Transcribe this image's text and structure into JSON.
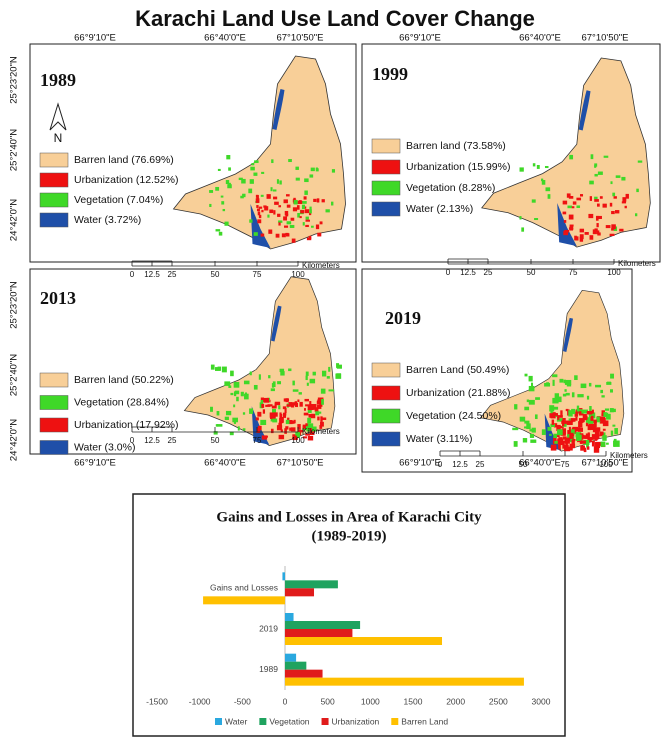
{
  "title": "Karachi Land Use Land Cover Change",
  "lon_labels": [
    "66°9'10\"E",
    "66°40'0\"E",
    "67°10'50\"E"
  ],
  "lat_labels": [
    "25°23'20\"N",
    "25°2'40\"N",
    "24°42'0\"N"
  ],
  "maps": [
    {
      "year": "1989",
      "north": "N",
      "legend": [
        {
          "label": "Barren land (76.69%)",
          "color": "#f8cf98"
        },
        {
          "label": "Urbanization (12.52%)",
          "color": "#ee1111"
        },
        {
          "label": "Vegetation (7.04%)",
          "color": "#3fd828"
        },
        {
          "label": "Water (3.72%)",
          "color": "#1f4fa8"
        }
      ],
      "scale": [
        "0",
        "12.5",
        "25",
        "50",
        "75",
        "100"
      ],
      "unit": "Kilometers"
    },
    {
      "year": "1999",
      "legend": [
        {
          "label": "Barren land (73.58%)",
          "color": "#f8cf98"
        },
        {
          "label": "Urbanization (15.99%)",
          "color": "#ee1111"
        },
        {
          "label": "Vegetation (8.28%)",
          "color": "#3fd828"
        },
        {
          "label": "Water (2.13%)",
          "color": "#1f4fa8"
        }
      ],
      "scale": [
        "0",
        "12.5",
        "25",
        "50",
        "75",
        "100"
      ],
      "unit": "Kilometers"
    },
    {
      "year": "2013",
      "legend": [
        {
          "label": "Barren land (50.22%)",
          "color": "#f8cf98"
        },
        {
          "label": "Vegetation (28.84%)",
          "color": "#3fd828"
        },
        {
          "label": "Urbanization (17.92%)",
          "color": "#ee1111"
        },
        {
          "label": "Water (3.0%)",
          "color": "#1f4fa8"
        }
      ],
      "scale": [
        "0",
        "12.5",
        "25",
        "50",
        "75",
        "100"
      ],
      "unit": "Kilometers"
    },
    {
      "year": "2019",
      "legend": [
        {
          "label": "Barren Land (50.49%)",
          "color": "#f8cf98"
        },
        {
          "label": "Urbanization (21.88%)",
          "color": "#ee1111"
        },
        {
          "label": "Vegetation (24.50%)",
          "color": "#3fd828"
        },
        {
          "label": "Water (3.11%)",
          "color": "#1f4fa8"
        }
      ],
      "scale": [
        "0",
        "12.5",
        "25",
        "50",
        "75",
        "100"
      ],
      "unit": "Kilometers"
    }
  ],
  "chart_data": {
    "type": "hbar",
    "title": "Gains and Losses in Area of Karachi City",
    "subtitle": "(1989-2019)",
    "categories": [
      "1989",
      "2019",
      "Gains and Losses"
    ],
    "series": [
      {
        "name": "Water",
        "color": "#2aa8df",
        "values": [
          130,
          100,
          -30
        ]
      },
      {
        "name": "Vegetation",
        "color": "#1fa35f",
        "values": [
          250,
          880,
          620
        ]
      },
      {
        "name": "Urbanization",
        "color": "#e01b1b",
        "values": [
          440,
          790,
          340
        ]
      },
      {
        "name": "Barren Land",
        "color": "#ffc000",
        "values": [
          2800,
          1840,
          -960
        ]
      }
    ],
    "xlim": [
      -1500,
      3000
    ],
    "xticks": [
      -1500,
      -1000,
      -500,
      0,
      500,
      1000,
      1500,
      2000,
      2500,
      3000
    ]
  }
}
